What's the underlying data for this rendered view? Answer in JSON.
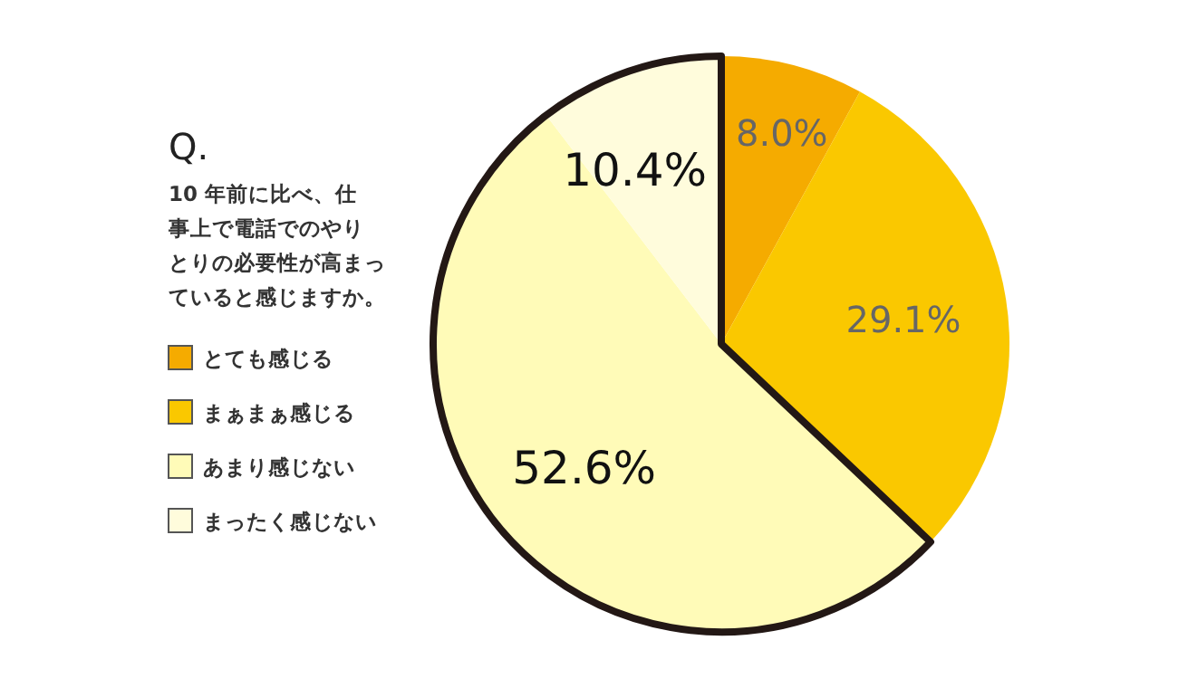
{
  "chart_data": {
    "type": "pie",
    "title": "Q.",
    "subtitle": "10 年前に比べ、仕事上で電話でのやりとりの必要性が高まっていると感じますか。",
    "categories": [
      "とても感じる",
      "まぁまぁ感じる",
      "あまり感じない",
      "まったく感じない"
    ],
    "values": [
      8.0,
      29.1,
      52.6,
      10.4
    ],
    "value_labels": [
      "8.0%",
      "29.1%",
      "52.6%",
      "10.4%"
    ],
    "colors": [
      "#f5ab00",
      "#fac800",
      "#fffbb8",
      "#fffcdc"
    ],
    "legend": "left"
  }
}
